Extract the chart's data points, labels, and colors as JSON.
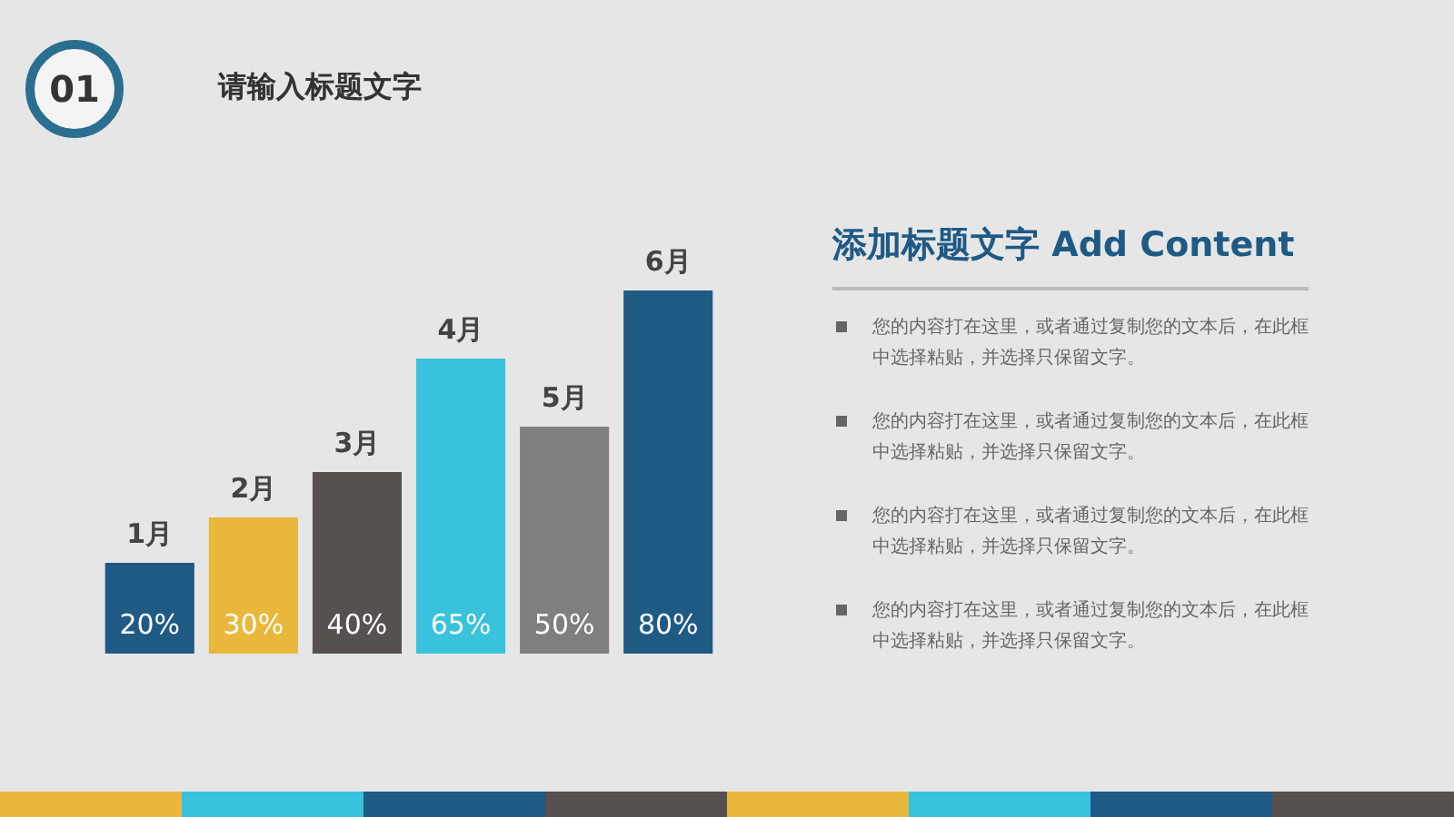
{
  "chart_data": {
    "type": "bar",
    "title": "请输入标题文字",
    "subtitle": "添加标题文字  Add Content",
    "categories": [
      "1月",
      "2月",
      "3月",
      "4月",
      "5月",
      "6月"
    ],
    "values": [
      20,
      30,
      40,
      65,
      50,
      80
    ],
    "value_labels": [
      "20%",
      "30%",
      "40%",
      "65%",
      "50%",
      "80%"
    ],
    "colors": [
      "#1f5a85",
      "#e9b73b",
      "#56504f",
      "#38c2dc",
      "#7f7f7f",
      "#1f5a85"
    ],
    "annotations": [
      "01",
      "您的内容打在这里，或者通过复制您的文本后，在此框中选择粘贴，并选择只保留文字。",
      "您的内容打在这里，或者通过复制您的文本后，在此框中选择粘贴，并选择只保留文字。",
      "您的内容打在这里，或者通过复制您的文本后，在此框中选择粘贴，并选择只保留文字。",
      "您的内容打在这里，或者通过复制您的文本后，在此框中选择粘贴，并选择只保留文字。"
    ]
  }
}
